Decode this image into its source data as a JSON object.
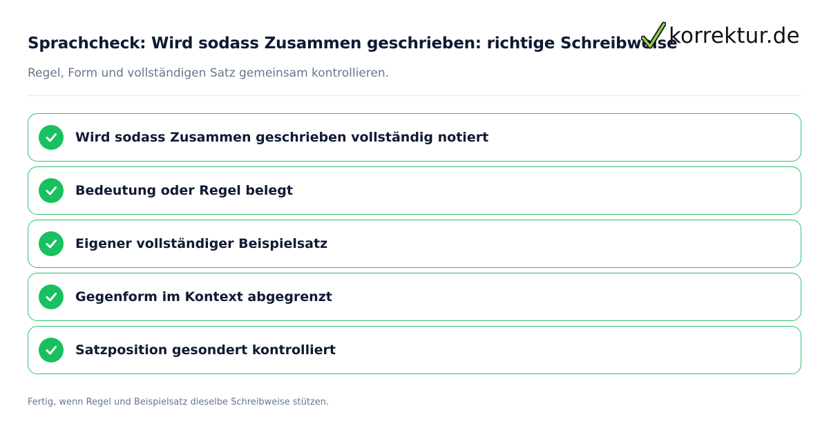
{
  "header": {
    "title": "Sprachcheck: Wird sodass Zusammen geschrieben: richtige Schreibweise",
    "subtitle": "Regel, Form und vollständigen Satz gemeinsam kontrollieren."
  },
  "brand": {
    "logo_text": "korrektur.de",
    "logo_icon": "checkmark-icon",
    "accent_color": "#18c05f",
    "border_color": "#2cc26a"
  },
  "checklist": {
    "items": [
      {
        "label": "Wird sodass Zusammen geschrieben vollständig notiert",
        "icon": "check-circle-icon",
        "checked": true
      },
      {
        "label": "Bedeutung oder Regel belegt",
        "icon": "check-circle-icon",
        "checked": true
      },
      {
        "label": "Eigener vollständiger Beispielsatz",
        "icon": "check-circle-icon",
        "checked": true
      },
      {
        "label": "Gegenform im Kontext abgegrenzt",
        "icon": "check-circle-icon",
        "checked": true
      },
      {
        "label": "Satzposition gesondert kontrolliert",
        "icon": "check-circle-icon",
        "checked": true
      }
    ]
  },
  "footer": {
    "note": "Fertig, wenn Regel und Beispielsatz dieselbe Schreibweise stützen."
  }
}
